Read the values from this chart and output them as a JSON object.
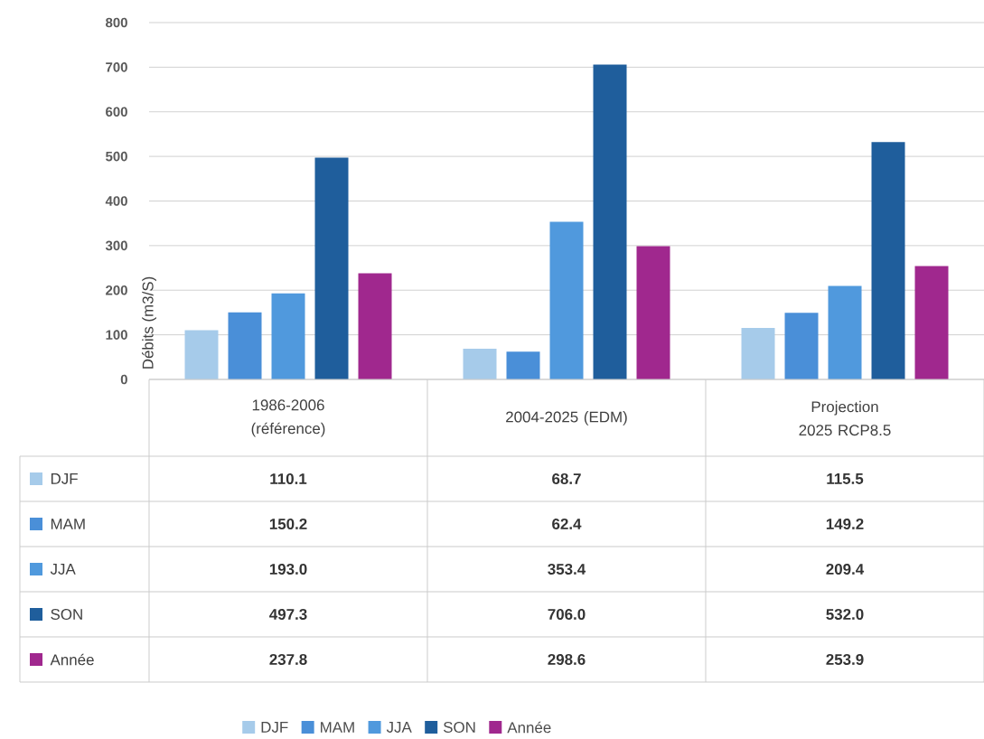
{
  "chart_data": {
    "type": "bar",
    "ylabel": "Débits (m3/S)",
    "categories": [
      "1986-2006 (référence)",
      "2004-2025 (EDM)",
      "Projection 2025 RCP8.5"
    ],
    "series": [
      {
        "name": "DJF",
        "color": "#a6cbea",
        "values": [
          110.1,
          68.7,
          115.5
        ],
        "value_labels": [
          "110.1",
          "68.7",
          "115.5"
        ]
      },
      {
        "name": "MAM",
        "color": "#4a8fd8",
        "values": [
          150.2,
          62.4,
          149.2
        ],
        "value_labels": [
          "150.2",
          "62.4",
          "149.2"
        ]
      },
      {
        "name": "JJA",
        "color": "#5099dd",
        "values": [
          193.0,
          353.4,
          209.4
        ],
        "value_labels": [
          "193.0",
          "353.4",
          "209.4"
        ]
      },
      {
        "name": "SON",
        "color": "#1f5e9c",
        "values": [
          497.3,
          706.0,
          532.0
        ],
        "value_labels": [
          "497.3",
          "706.0",
          "532.0"
        ]
      },
      {
        "name": "Année",
        "color": "#a0288e",
        "values": [
          237.8,
          298.6,
          253.9
        ],
        "value_labels": [
          "237.8",
          "298.6",
          "253.9"
        ]
      }
    ],
    "ylim": [
      0,
      800
    ],
    "yticks": [
      0,
      100,
      200,
      300,
      400,
      500,
      600,
      700,
      800
    ],
    "grid": "y",
    "legend": "bottom"
  }
}
